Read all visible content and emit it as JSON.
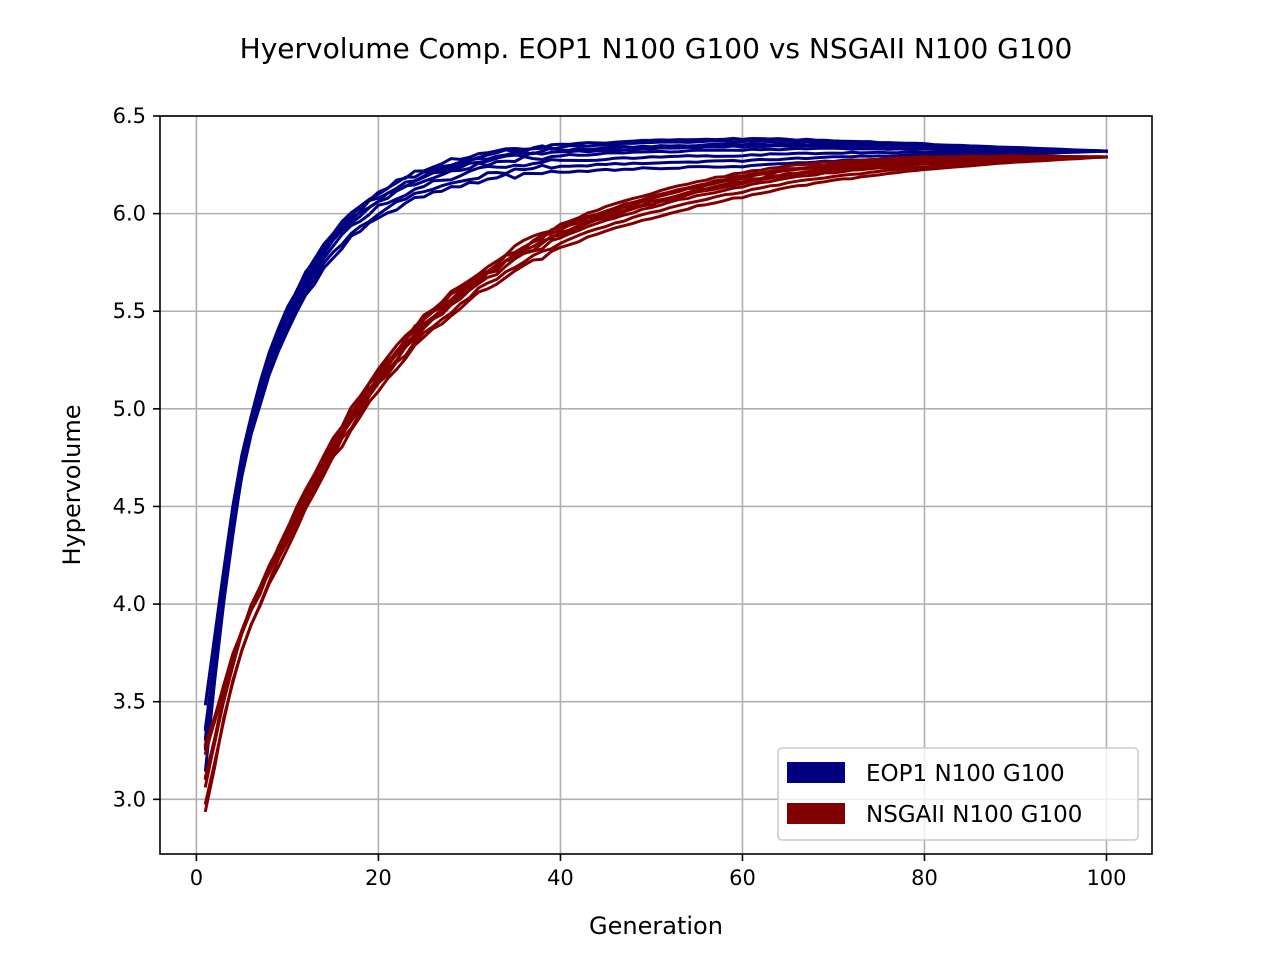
{
  "chart_data": {
    "type": "line",
    "title": "Hyervolume Comp. EOP1 N100 G100 vs NSGAII N100 G100",
    "xlabel": "Generation",
    "ylabel": "Hypervolume",
    "xlim": [
      -4,
      105
    ],
    "ylim": [
      2.72,
      6.5
    ],
    "xticks": [
      0,
      20,
      40,
      60,
      80,
      100
    ],
    "yticks": [
      3.0,
      3.5,
      4.0,
      4.5,
      5.0,
      5.5,
      6.0,
      6.5
    ],
    "xtick_labels": [
      "0",
      "20",
      "40",
      "60",
      "80",
      "100"
    ],
    "ytick_labels": [
      "3.0",
      "3.5",
      "4.0",
      "4.5",
      "5.0",
      "5.5",
      "6.0",
      "6.5"
    ],
    "grid": true,
    "legend_position": "lower-right",
    "runs_per_series": 8,
    "series": [
      {
        "name": "EOP1 N100 G100",
        "color": "#000080",
        "x": [
          1,
          2,
          3,
          4,
          5,
          6,
          7,
          8,
          9,
          10,
          12,
          14,
          16,
          18,
          20,
          22,
          25,
          30,
          35,
          40,
          50,
          60,
          70,
          80,
          90,
          100
        ],
        "y": [
          3.1,
          3.5,
          3.9,
          4.25,
          4.55,
          4.8,
          5.0,
          5.15,
          5.28,
          5.4,
          5.6,
          5.75,
          5.87,
          5.96,
          6.03,
          6.08,
          6.15,
          6.22,
          6.26,
          6.28,
          6.3,
          6.31,
          6.32,
          6.32,
          6.32,
          6.32
        ]
      },
      {
        "name": "NSGAII N100 G100",
        "color": "#800000",
        "x": [
          1,
          2,
          3,
          4,
          5,
          6,
          7,
          8,
          9,
          10,
          12,
          14,
          16,
          18,
          20,
          22,
          25,
          30,
          35,
          40,
          45,
          50,
          55,
          60,
          65,
          70,
          75,
          80,
          85,
          90,
          95,
          100
        ],
        "y": [
          3.05,
          3.2,
          3.4,
          3.6,
          3.75,
          3.9,
          4.0,
          4.1,
          4.2,
          4.3,
          4.48,
          4.67,
          4.83,
          4.98,
          5.12,
          5.24,
          5.4,
          5.6,
          5.76,
          5.88,
          5.97,
          6.04,
          6.1,
          6.15,
          6.19,
          6.22,
          6.24,
          6.26,
          6.27,
          6.28,
          6.285,
          6.29
        ]
      }
    ]
  }
}
